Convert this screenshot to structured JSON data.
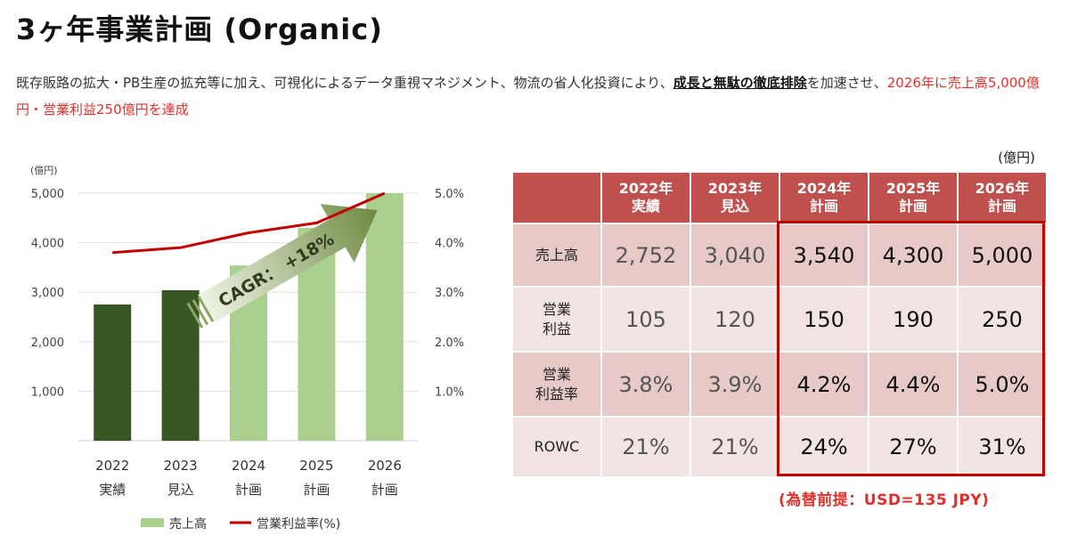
{
  "page": {
    "title": "3ヶ年事業計画 (Organic)",
    "desc_part1": "既存販路の拡大・PB生産の拡充等に加え、可視化によるデータ重視マネジメント、物流の省人化投資により、",
    "desc_emphasis": "成長と無駄の徹底排除",
    "desc_part2": "を加速させ、",
    "desc_highlight": "2026年に売上高5,000億円・営業利益250億円を達成"
  },
  "chart_data": {
    "type": "bar",
    "categories": [
      "2022\n実績",
      "2023\n見込",
      "2024\n計画",
      "2025\n計画",
      "2026\n計画"
    ],
    "category_years": [
      "2022",
      "2023",
      "2024",
      "2025",
      "2026"
    ],
    "category_subs": [
      "実績",
      "見込",
      "計画",
      "計画",
      "計画"
    ],
    "series": [
      {
        "name": "売上高",
        "type": "bar",
        "axis": "left",
        "values": [
          2752,
          3040,
          3540,
          4300,
          5000
        ]
      },
      {
        "name": "営業利益率(%)",
        "type": "line",
        "axis": "right",
        "values": [
          3.8,
          3.9,
          4.2,
          4.4,
          5.0
        ]
      }
    ],
    "bar_colors": [
      "#375623",
      "#375623",
      "#a9d08e",
      "#a9d08e",
      "#a9d08e"
    ],
    "line_color": "#c00000",
    "y_unit": "(億円)",
    "ylim": [
      0,
      5000
    ],
    "yticks": [
      "5,000",
      "4,000",
      "3,000",
      "2,000",
      "1,000"
    ],
    "ytick_values": [
      5000,
      4000,
      3000,
      2000,
      1000
    ],
    "y2lim": [
      0,
      5.0
    ],
    "y2ticks": [
      "5.0%",
      "4.0%",
      "3.0%",
      "2.0%",
      "1.0%"
    ],
    "y2tick_values": [
      5.0,
      4.0,
      3.0,
      2.0,
      1.0
    ],
    "annotation": "CAGR： +18%",
    "legend_position": "bottom"
  },
  "table": {
    "unit": "(億円)",
    "headers": [
      {
        "line1": "",
        "line2": ""
      },
      {
        "line1": "2022年",
        "line2": "実績"
      },
      {
        "line1": "2023年",
        "line2": "見込"
      },
      {
        "line1": "2024年",
        "line2": "計画"
      },
      {
        "line1": "2025年",
        "line2": "計画"
      },
      {
        "line1": "2026年",
        "line2": "計画"
      }
    ],
    "rows": [
      {
        "label1": "売上高",
        "label2": "",
        "values": [
          "2,752",
          "3,040",
          "3,540",
          "4,300",
          "5,000"
        ]
      },
      {
        "label1": "営業",
        "label2": "利益",
        "values": [
          "105",
          "120",
          "150",
          "190",
          "250"
        ]
      },
      {
        "label1": "営業",
        "label2": "利益率",
        "values": [
          "3.8%",
          "3.9%",
          "4.2%",
          "4.4%",
          "5.0%"
        ]
      },
      {
        "label1": "ROWC",
        "label2": "",
        "values": [
          "21%",
          "21%",
          "24%",
          "27%",
          "31%"
        ]
      }
    ],
    "footnote": "(為替前提：USD=135 JPY)"
  },
  "colors": {
    "header_red": "#c0504d",
    "row_dark": "#e7c9c8",
    "row_light": "#f3e4e4",
    "highlight_border": "#c00000",
    "accent_red": "#e0312b"
  }
}
